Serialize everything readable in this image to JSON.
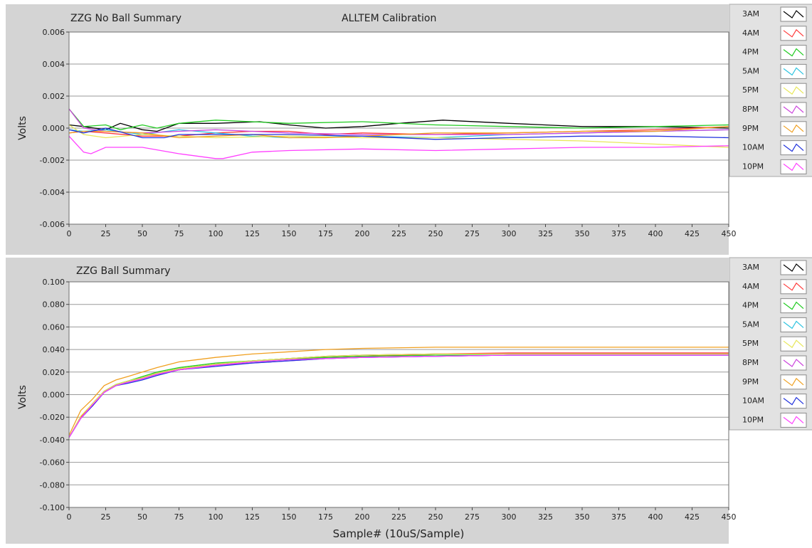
{
  "chart_data": [
    {
      "type": "line",
      "title": "ZZG No Ball Summary",
      "subtitle": "ALLTEM Calibration",
      "xlabel": "",
      "ylabel": "Volts",
      "xlim": [
        0,
        450
      ],
      "ylim": [
        -0.006,
        0.006
      ],
      "xticks": [
        0,
        25,
        50,
        75,
        100,
        125,
        150,
        175,
        200,
        225,
        250,
        275,
        300,
        325,
        350,
        375,
        400,
        425,
        450
      ],
      "yticks": [
        0.006,
        0.004,
        0.002,
        0.0,
        -0.002,
        -0.004,
        -0.006
      ],
      "ytick_labels": [
        "0.006",
        "0.004",
        "0.002",
        "0.000",
        "-0.002",
        "-0.004",
        "-0.006"
      ],
      "grid": true,
      "legend_position": "right",
      "series": [
        {
          "name": "3AM",
          "color": "#000000",
          "x": [
            0,
            10,
            25,
            35,
            50,
            60,
            75,
            100,
            130,
            150,
            175,
            200,
            225,
            255,
            300,
            350,
            400,
            450
          ],
          "y": [
            0.0002,
            0.0001,
            -0.0001,
            0.0003,
            -0.0001,
            -0.0002,
            0.0003,
            0.0003,
            0.0004,
            0.0002,
            0.0,
            0.0001,
            0.0003,
            0.0005,
            0.0003,
            0.0001,
            0.0001,
            0.0
          ]
        },
        {
          "name": "4AM",
          "color": "#ff3b3b",
          "x": [
            0,
            10,
            25,
            50,
            75,
            100,
            125,
            150,
            175,
            200,
            250,
            300,
            350,
            400,
            450
          ],
          "y": [
            -0.0003,
            -0.0002,
            -0.0003,
            -0.0005,
            -0.0005,
            -0.0003,
            -0.0002,
            -0.0002,
            -0.0004,
            -0.0003,
            -0.0004,
            -0.0003,
            -0.0002,
            -0.0001,
            0.0001
          ]
        },
        {
          "name": "4PM",
          "color": "#22cc22",
          "x": [
            0,
            10,
            25,
            35,
            50,
            60,
            75,
            100,
            150,
            200,
            250,
            300,
            350,
            400,
            450
          ],
          "y": [
            0.0012,
            0.0001,
            0.0002,
            -0.0001,
            0.0002,
            0.0,
            0.0003,
            0.0005,
            0.0003,
            0.0004,
            0.0002,
            0.0001,
            0.0,
            0.0001,
            0.0002
          ]
        },
        {
          "name": "5AM",
          "color": "#2ec4e0",
          "x": [
            0,
            10,
            25,
            50,
            75,
            100,
            125,
            150,
            200,
            250,
            300,
            350,
            400,
            450
          ],
          "y": [
            -0.0001,
            -0.0002,
            -0.0001,
            -0.0004,
            -0.0001,
            -0.0003,
            -0.0005,
            -0.0006,
            -0.0005,
            -0.0006,
            -0.0004,
            -0.0003,
            -0.0002,
            -0.0001
          ]
        },
        {
          "name": "5PM",
          "color": "#e8e85a",
          "x": [
            0,
            10,
            25,
            50,
            75,
            100,
            150,
            200,
            250,
            300,
            350,
            400,
            450
          ],
          "y": [
            0.0002,
            -0.0004,
            -0.0006,
            -0.0004,
            -0.0005,
            -0.0006,
            -0.0005,
            -0.0006,
            -0.0006,
            -0.0007,
            -0.0008,
            -0.001,
            -0.0012
          ]
        },
        {
          "name": "8PM",
          "color": "#cc44dd",
          "x": [
            0,
            10,
            25,
            50,
            75,
            100,
            125,
            150,
            200,
            250,
            300,
            350,
            400,
            450
          ],
          "y": [
            0.0012,
            0.0,
            -0.0002,
            -0.0003,
            -0.0002,
            -0.0001,
            -0.0002,
            -0.0003,
            -0.0004,
            -0.0004,
            -0.0004,
            -0.0003,
            -0.0002,
            -0.0001
          ]
        },
        {
          "name": "9PM",
          "color": "#f0a020",
          "x": [
            0,
            10,
            25,
            50,
            75,
            100,
            125,
            150,
            175,
            200,
            250,
            300,
            350,
            400,
            450
          ],
          "y": [
            -0.0003,
            -0.0002,
            -0.0002,
            -0.0003,
            -0.0006,
            -0.0005,
            -0.0004,
            -0.0006,
            -0.0006,
            -0.0005,
            -0.0003,
            -0.0003,
            -0.0002,
            -0.0002,
            0.0001
          ]
        },
        {
          "name": "10AM",
          "color": "#2233dd",
          "x": [
            0,
            10,
            25,
            50,
            65,
            75,
            100,
            150,
            200,
            250,
            300,
            350,
            400,
            450
          ],
          "y": [
            -0.0001,
            -0.0003,
            0.0,
            -0.0006,
            -0.0006,
            -0.0004,
            -0.0004,
            -0.0004,
            -0.0005,
            -0.0007,
            -0.0006,
            -0.0005,
            -0.0005,
            -0.0006
          ]
        },
        {
          "name": "10PM",
          "color": "#ff40ff",
          "x": [
            0,
            10,
            15,
            25,
            50,
            75,
            100,
            105,
            125,
            150,
            200,
            250,
            300,
            350,
            400,
            450
          ],
          "y": [
            -0.0005,
            -0.0015,
            -0.0016,
            -0.0012,
            -0.0012,
            -0.0016,
            -0.0019,
            -0.0019,
            -0.0015,
            -0.0014,
            -0.0013,
            -0.0014,
            -0.0013,
            -0.0012,
            -0.0012,
            -0.0011
          ]
        }
      ]
    },
    {
      "type": "line",
      "title": "ZZG Ball Summary",
      "xlabel": "Sample# (10uS/Sample)",
      "ylabel": "Volts",
      "xlim": [
        0,
        450
      ],
      "ylim": [
        -0.1,
        0.1
      ],
      "xticks": [
        0,
        25,
        50,
        75,
        100,
        125,
        150,
        175,
        200,
        225,
        250,
        275,
        300,
        325,
        350,
        375,
        400,
        425,
        450
      ],
      "yticks": [
        0.1,
        0.08,
        0.06,
        0.04,
        0.02,
        0.0,
        -0.02,
        -0.04,
        -0.06,
        -0.08,
        -0.1
      ],
      "ytick_labels": [
        "0.100",
        "0.080",
        "0.060",
        "0.040",
        "0.020",
        "0.000",
        "-0.020",
        "-0.040",
        "-0.060",
        "-0.080",
        "-0.100"
      ],
      "grid": true,
      "legend_position": "right",
      "series": [
        {
          "name": "3AM",
          "color": "#000000",
          "x": [
            0,
            8,
            16,
            24,
            32,
            40,
            50,
            60,
            75,
            100,
            125,
            150,
            175,
            200,
            250,
            300,
            350,
            400,
            450
          ],
          "y": [
            -0.038,
            -0.02,
            -0.008,
            0.003,
            0.009,
            0.012,
            0.015,
            0.019,
            0.023,
            0.027,
            0.03,
            0.032,
            0.034,
            0.035,
            0.036,
            0.036,
            0.036,
            0.036,
            0.036
          ]
        },
        {
          "name": "4AM",
          "color": "#ff3b3b",
          "x": [
            0,
            8,
            16,
            24,
            32,
            40,
            50,
            60,
            75,
            100,
            125,
            150,
            175,
            200,
            250,
            300,
            350,
            400,
            450
          ],
          "y": [
            -0.038,
            -0.02,
            -0.009,
            0.002,
            0.008,
            0.011,
            0.014,
            0.018,
            0.022,
            0.026,
            0.029,
            0.031,
            0.033,
            0.034,
            0.036,
            0.037,
            0.037,
            0.037,
            0.037
          ]
        },
        {
          "name": "4PM",
          "color": "#22cc22",
          "x": [
            0,
            8,
            16,
            24,
            32,
            40,
            50,
            60,
            75,
            100,
            125,
            150,
            175,
            200,
            250,
            300,
            350,
            400,
            450
          ],
          "y": [
            -0.038,
            -0.021,
            -0.009,
            0.002,
            0.009,
            0.012,
            0.016,
            0.02,
            0.024,
            0.028,
            0.03,
            0.032,
            0.033,
            0.034,
            0.035,
            0.035,
            0.035,
            0.035,
            0.035
          ]
        },
        {
          "name": "5AM",
          "color": "#2ec4e0",
          "x": [
            0,
            8,
            16,
            24,
            32,
            40,
            50,
            60,
            75,
            100,
            125,
            150,
            175,
            200,
            250,
            300,
            350,
            400,
            450
          ],
          "y": [
            -0.038,
            -0.021,
            -0.009,
            0.002,
            0.008,
            0.011,
            0.014,
            0.018,
            0.022,
            0.026,
            0.029,
            0.031,
            0.032,
            0.033,
            0.034,
            0.035,
            0.035,
            0.035,
            0.035
          ]
        },
        {
          "name": "5PM",
          "color": "#e8e85a",
          "x": [
            0,
            8,
            16,
            24,
            32,
            40,
            50,
            60,
            75,
            100,
            125,
            150,
            175,
            200,
            250,
            300,
            350,
            400,
            450
          ],
          "y": [
            -0.038,
            -0.019,
            -0.008,
            0.003,
            0.009,
            0.012,
            0.015,
            0.019,
            0.023,
            0.027,
            0.03,
            0.032,
            0.034,
            0.035,
            0.036,
            0.036,
            0.036,
            0.036,
            0.036
          ]
        },
        {
          "name": "8PM",
          "color": "#cc44dd",
          "x": [
            0,
            8,
            16,
            24,
            32,
            40,
            50,
            60,
            75,
            100,
            125,
            150,
            175,
            200,
            250,
            300,
            350,
            400,
            450
          ],
          "y": [
            -0.038,
            -0.021,
            -0.01,
            0.002,
            0.008,
            0.011,
            0.014,
            0.018,
            0.022,
            0.026,
            0.028,
            0.03,
            0.032,
            0.033,
            0.034,
            0.035,
            0.035,
            0.035,
            0.035
          ]
        },
        {
          "name": "9PM",
          "color": "#f0a020",
          "x": [
            0,
            8,
            16,
            24,
            32,
            40,
            50,
            60,
            75,
            100,
            125,
            150,
            175,
            200,
            250,
            300,
            350,
            400,
            450
          ],
          "y": [
            -0.036,
            -0.014,
            -0.004,
            0.008,
            0.013,
            0.016,
            0.02,
            0.024,
            0.029,
            0.033,
            0.036,
            0.038,
            0.04,
            0.041,
            0.042,
            0.042,
            0.042,
            0.042,
            0.042
          ]
        },
        {
          "name": "10AM",
          "color": "#2233dd",
          "x": [
            0,
            8,
            16,
            24,
            32,
            40,
            50,
            60,
            75,
            100,
            125,
            150,
            175,
            200,
            250,
            300,
            350,
            400,
            450
          ],
          "y": [
            -0.038,
            -0.021,
            -0.01,
            0.002,
            0.008,
            0.01,
            0.013,
            0.017,
            0.022,
            0.025,
            0.028,
            0.03,
            0.032,
            0.033,
            0.034,
            0.035,
            0.035,
            0.035,
            0.035
          ]
        },
        {
          "name": "10PM",
          "color": "#ff40ff",
          "x": [
            0,
            8,
            16,
            24,
            32,
            40,
            50,
            60,
            75,
            100,
            125,
            150,
            175,
            200,
            250,
            300,
            350,
            400,
            450
          ],
          "y": [
            -0.038,
            -0.021,
            -0.009,
            0.002,
            0.008,
            0.011,
            0.014,
            0.018,
            0.022,
            0.026,
            0.029,
            0.031,
            0.032,
            0.033,
            0.034,
            0.035,
            0.035,
            0.035,
            0.035
          ]
        }
      ]
    }
  ]
}
